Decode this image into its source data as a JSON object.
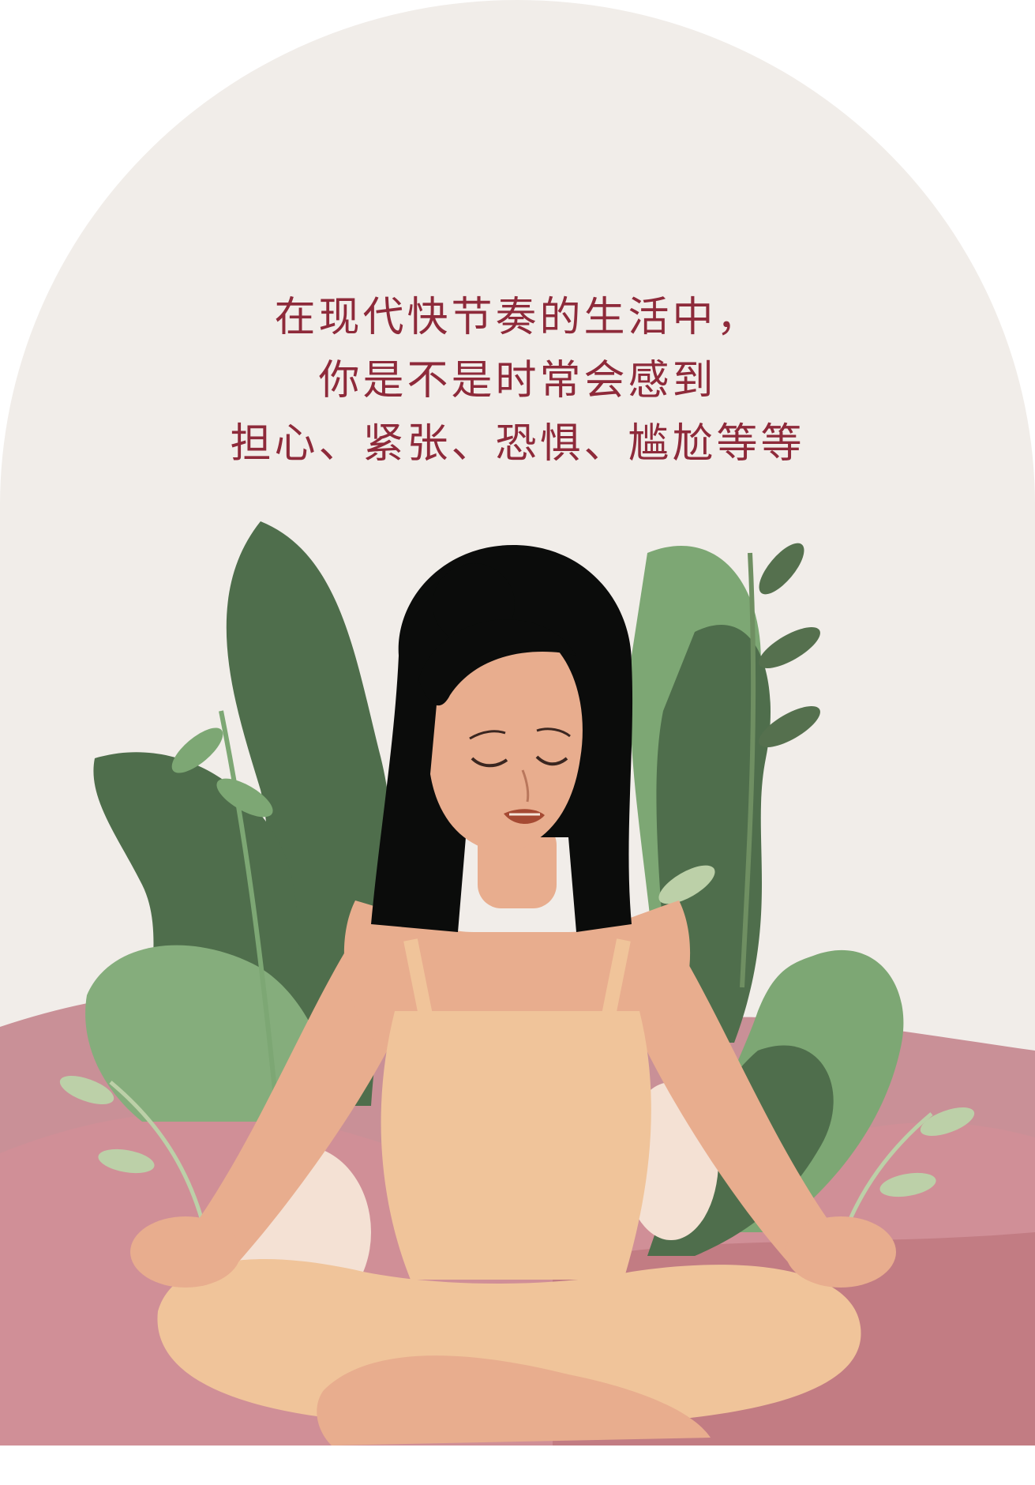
{
  "caption": {
    "lines": [
      "在现代快节奏的生活中，",
      "你是不是时常会感到",
      "担心、紧张、恐惧、尴尬等等"
    ]
  },
  "colors": {
    "accent": "#8e2a3a",
    "background": "#f1ede9",
    "hill_light": "#c99097",
    "hill_dark": "#c27c83",
    "skin": "#e8ad8e",
    "dress": "#f0c49a",
    "hair": "#0b0c0b",
    "leaf_dark": "#4f6e4c",
    "leaf_mid": "#7da774",
    "leaf_light": "#bcd0a8"
  },
  "illustration": {
    "subject": "woman-meditating-icon",
    "background_elements": [
      "plant-leaves-icon",
      "pink-hills-icon"
    ]
  }
}
